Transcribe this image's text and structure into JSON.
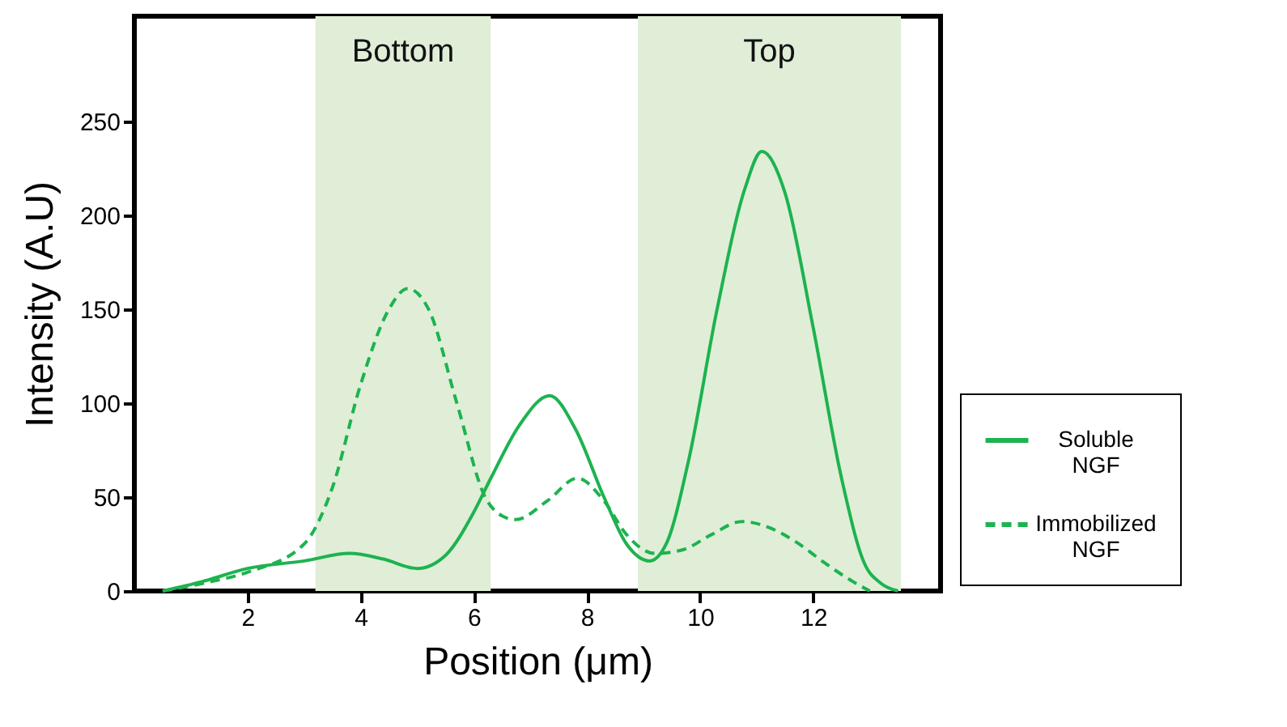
{
  "chart_data": {
    "type": "line",
    "xlabel": "Position (μm)",
    "ylabel": "Intensity (A.U)",
    "xlim": [
      0,
      14.25
    ],
    "ylim": [
      0,
      306
    ],
    "xticks": [
      2,
      4,
      6,
      8,
      10,
      12
    ],
    "yticks": [
      0,
      50,
      100,
      150,
      200,
      250
    ],
    "grid": false,
    "legend": "right",
    "marker": "none",
    "bands": [
      {
        "axis": "x",
        "from": 3.2,
        "to": 6.3,
        "label": "Bottom",
        "color": "#e0eed8"
      },
      {
        "axis": "x",
        "from": 8.9,
        "to": 13.55,
        "label": "Top",
        "color": "#e0eed8"
      }
    ],
    "series": [
      {
        "name": "Soluble NGF",
        "color": "#1db34f",
        "line_style": "solid",
        "x": [
          0.5,
          1.2,
          2,
          3,
          3.8,
          4.4,
          5,
          5.5,
          6,
          6.3,
          6.8,
          7.34,
          7.8,
          8.3,
          8.7,
          9.11,
          9.4,
          9.8,
          10.3,
          10.8,
          11.09,
          11.5,
          12,
          12.5,
          12.9,
          13.2,
          13.5
        ],
        "values": [
          0,
          5,
          12,
          16,
          20,
          17,
          12,
          19,
          42,
          60,
          88,
          104,
          86,
          50,
          25,
          16,
          25,
          70,
          150,
          215,
          234,
          212,
          140,
          60,
          15,
          4,
          0
        ]
      },
      {
        "name": "Immobilized NGF",
        "color": "#1db34f",
        "line_style": "dashed",
        "x": [
          0.5,
          1.2,
          2,
          3,
          3.5,
          4,
          4.5,
          4.83,
          5.2,
          5.7,
          6.2,
          6.5,
          6.74,
          7.3,
          7.83,
          8.3,
          8.7,
          9.2,
          9.7,
          10.2,
          10.74,
          11.2,
          11.7,
          12.2,
          12.7,
          13
        ],
        "values": [
          0,
          4,
          10,
          25,
          55,
          110,
          150,
          161,
          150,
          100,
          50,
          40,
          38,
          48,
          60,
          48,
          30,
          20,
          22,
          30,
          37,
          34,
          26,
          15,
          5,
          0
        ]
      }
    ]
  }
}
